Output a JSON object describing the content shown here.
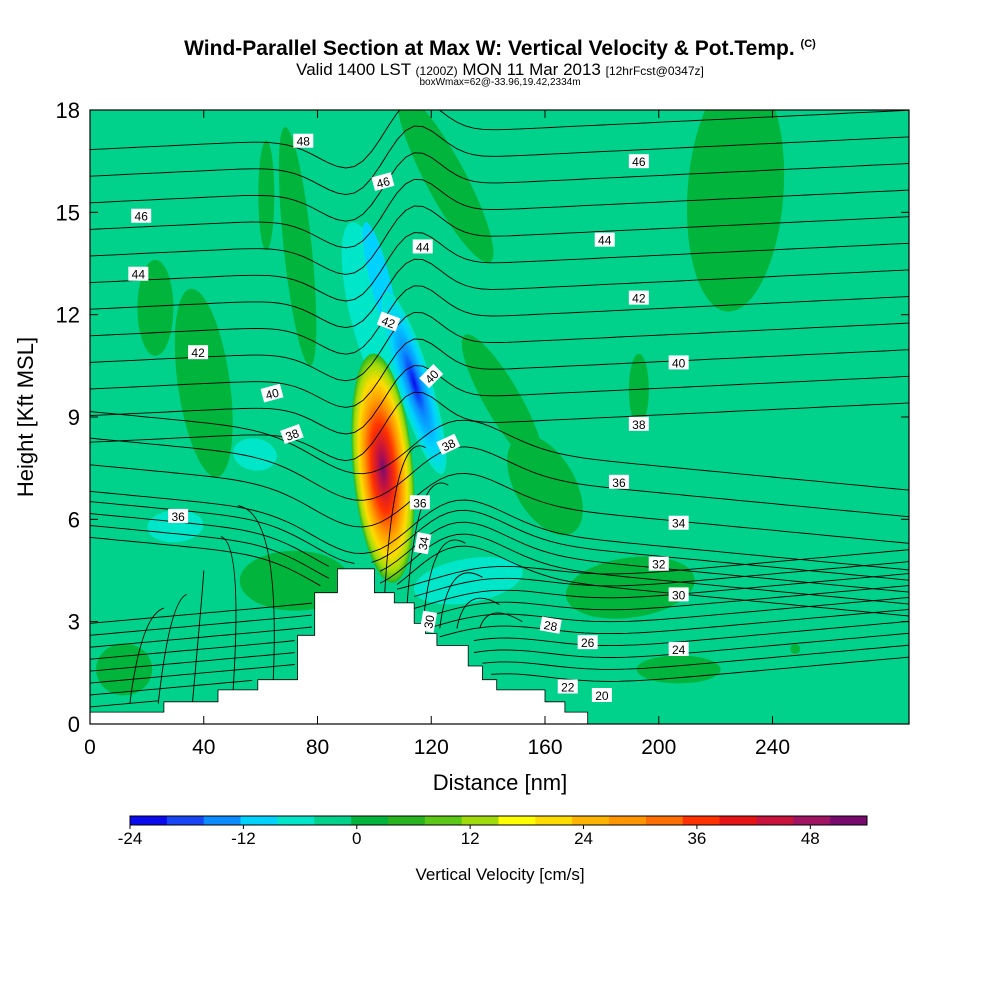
{
  "chart_data": {
    "type": "heatmap",
    "title": "Wind-Parallel Section at Max W: Vertical Velocity & Pot.Temp.",
    "title_mark": "(C)",
    "subtitle_main": "Valid 1400 LST",
    "subtitle_utc": "(1200Z)",
    "subtitle_date": "MON 11 Mar 2013",
    "subtitle_fcst": "[12hrFcst@0347z]",
    "subtitle_box": "boxWmax=62@-33.96,19.42,2334m",
    "xlabel": "Distance [nm]",
    "ylabel": "Height [Kft MSL]",
    "xlim": [
      0,
      288
    ],
    "ylim": [
      0,
      18
    ],
    "xticks": [
      "0",
      "40",
      "80",
      "120",
      "160",
      "200",
      "240"
    ],
    "yticks": [
      "0",
      "3",
      "6",
      "9",
      "12",
      "15",
      "18"
    ],
    "colorbar_label": "Vertical Velocity [cm/s]",
    "colorbar_range": [
      -24,
      54
    ],
    "colorbar_ticks": [
      "-24",
      "-12",
      "0",
      "12",
      "24",
      "36",
      "48"
    ],
    "colorbar_colors": [
      "#0a0aee",
      "#1846f5",
      "#0a8cff",
      "#00d2ff",
      "#00e6c8",
      "#00d28c",
      "#00b43c",
      "#28b41e",
      "#5ac814",
      "#a0dc0a",
      "#ffff00",
      "#ffdc00",
      "#ffb400",
      "#ff9600",
      "#ff6e00",
      "#ff3200",
      "#e61414",
      "#c8143c",
      "#a01464",
      "#780a6e"
    ],
    "background_color": "#00d28c",
    "terrain_profile": [
      [
        0,
        0.35
      ],
      [
        26,
        0.35
      ],
      [
        26,
        0.65
      ],
      [
        45,
        0.65
      ],
      [
        45,
        1.0
      ],
      [
        59,
        1.0
      ],
      [
        59,
        1.3
      ],
      [
        73,
        1.3
      ],
      [
        73,
        2.6
      ],
      [
        79,
        2.6
      ],
      [
        79,
        3.85
      ],
      [
        87,
        3.85
      ],
      [
        87,
        4.55
      ],
      [
        100,
        4.55
      ],
      [
        100,
        3.85
      ],
      [
        107,
        3.85
      ],
      [
        107,
        3.55
      ],
      [
        114,
        3.55
      ],
      [
        114,
        2.95
      ],
      [
        118,
        2.95
      ],
      [
        118,
        2.65
      ],
      [
        122,
        2.65
      ],
      [
        122,
        2.3
      ],
      [
        133,
        2.3
      ],
      [
        133,
        1.7
      ],
      [
        138,
        1.7
      ],
      [
        138,
        1.3
      ],
      [
        143,
        1.3
      ],
      [
        143,
        1.0
      ],
      [
        160,
        1.0
      ],
      [
        160,
        0.65
      ],
      [
        167,
        0.65
      ],
      [
        167,
        0.35
      ],
      [
        175,
        0.35
      ],
      [
        175,
        0
      ]
    ],
    "updraft_center": [
      103,
      7.5
    ],
    "downdraft_center": [
      114,
      10
    ],
    "theta_label_values": [
      "48",
      "46",
      "46",
      "46",
      "44",
      "44",
      "44",
      "42",
      "42",
      "42",
      "40",
      "40",
      "40",
      "38",
      "38",
      "38",
      "36",
      "36",
      "36",
      "34",
      "34",
      "32",
      "30",
      "30",
      "28",
      "26",
      "24",
      "22",
      "20"
    ]
  }
}
